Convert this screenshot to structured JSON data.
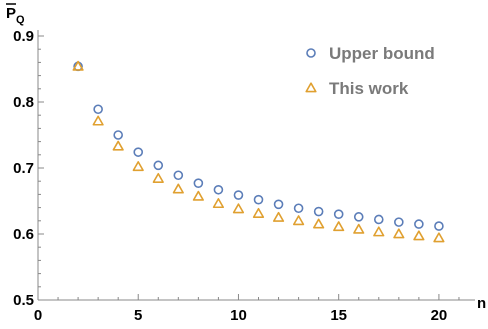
{
  "chart_data": {
    "type": "scatter",
    "ylabel_main": "P",
    "ylabel_sub": "Q",
    "xlabel": "n",
    "xlim": [
      0,
      21.8
    ],
    "ylim": [
      0.5,
      0.9
    ],
    "xticks": [
      0,
      5,
      10,
      15,
      20
    ],
    "yticks": [
      0.5,
      0.6,
      0.7,
      0.8,
      0.9
    ],
    "grid": false,
    "legend_position": "top-right",
    "x": [
      2,
      3,
      4,
      5,
      6,
      7,
      8,
      9,
      10,
      11,
      12,
      13,
      14,
      15,
      16,
      17,
      18,
      19,
      20
    ],
    "series": [
      {
        "name": "Upper bound",
        "marker": "circle",
        "color": "#5b7db8",
        "values": [
          0.854,
          0.789,
          0.75,
          0.724,
          0.704,
          0.689,
          0.677,
          0.667,
          0.659,
          0.652,
          0.645,
          0.639,
          0.634,
          0.63,
          0.626,
          0.622,
          0.618,
          0.615,
          0.612
        ]
      },
      {
        "name": "This work",
        "marker": "triangle",
        "color": "#e0a030",
        "values": [
          0.854,
          0.771,
          0.733,
          0.702,
          0.684,
          0.668,
          0.657,
          0.646,
          0.638,
          0.631,
          0.625,
          0.62,
          0.615,
          0.611,
          0.607,
          0.603,
          0.6,
          0.597,
          0.594
        ]
      }
    ]
  }
}
